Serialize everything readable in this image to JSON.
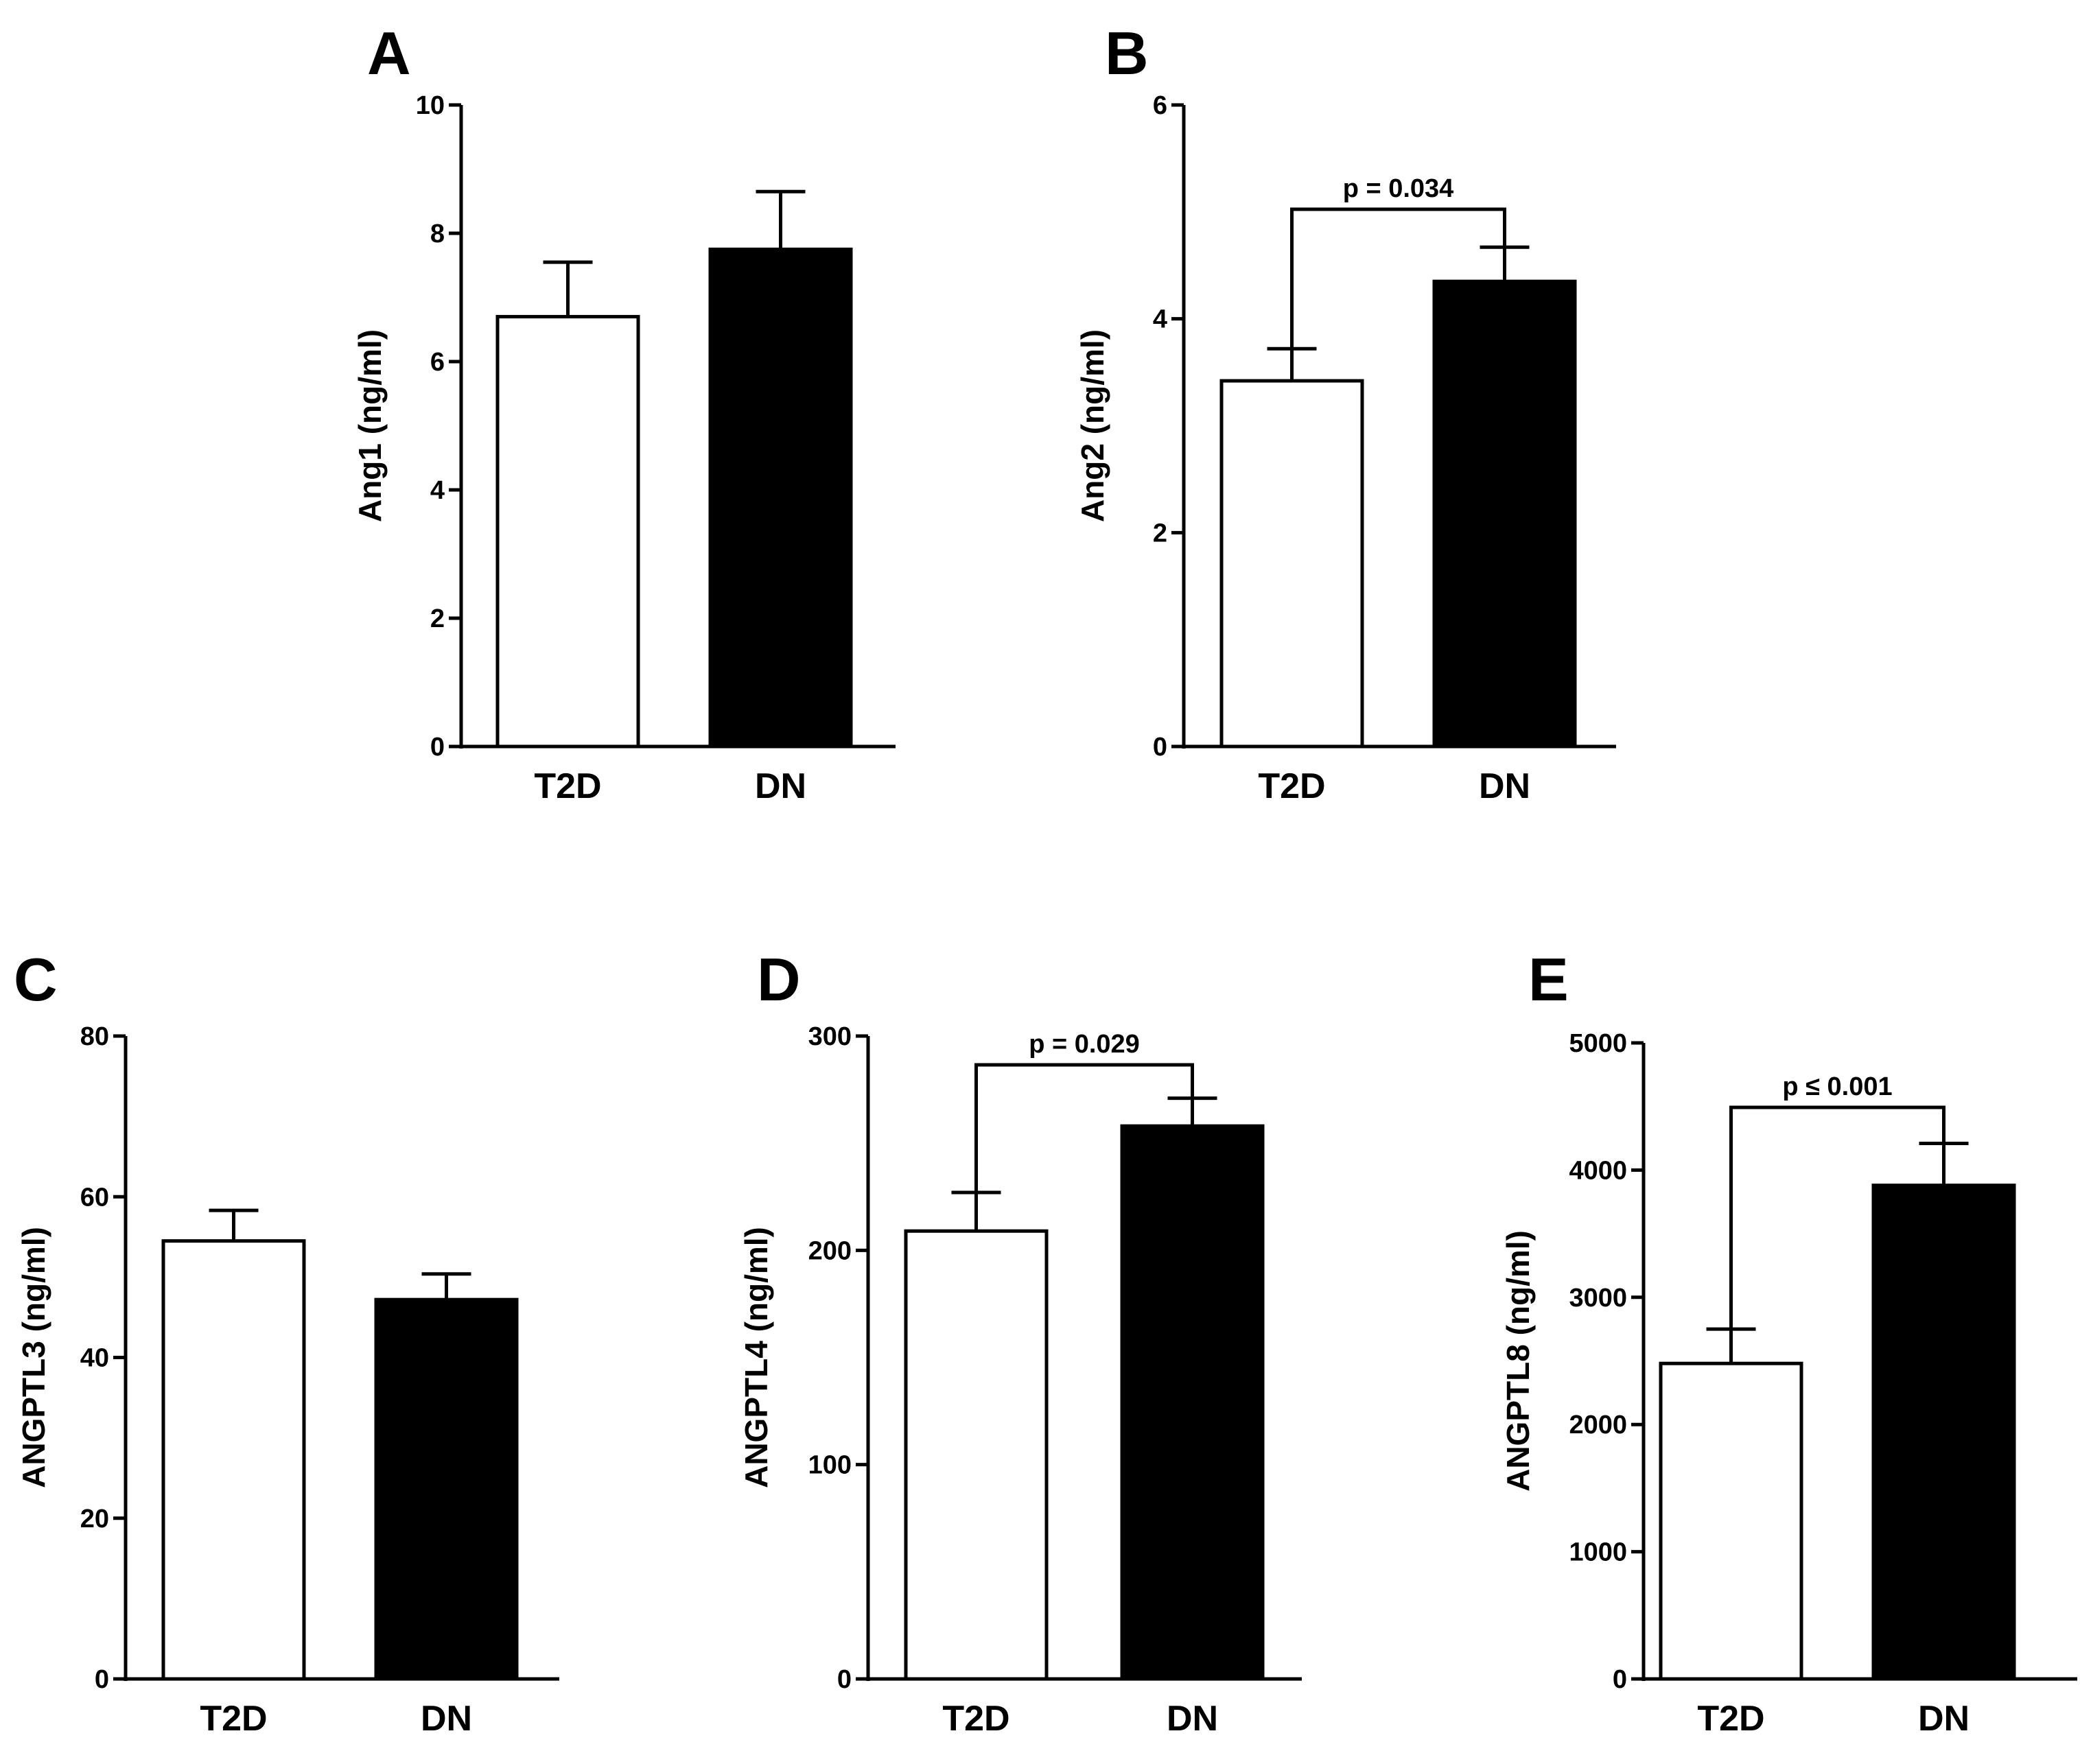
{
  "chart_data": [
    {
      "panel": "A",
      "type": "bar",
      "categories": [
        "T2D",
        "DN"
      ],
      "values": [
        6.7,
        7.75
      ],
      "errors": [
        0.85,
        0.9
      ],
      "fill_colors": [
        "#ffffff",
        "#000000"
      ],
      "ylabel": "Ang1 (ng/ml)",
      "ylim": [
        0,
        10
      ],
      "yticks": [
        "0",
        "2",
        "4",
        "6",
        "8",
        "10"
      ],
      "significance": null
    },
    {
      "panel": "B",
      "type": "bar",
      "categories": [
        "T2D",
        "DN"
      ],
      "values": [
        3.42,
        4.35
      ],
      "errors": [
        0.3,
        0.32
      ],
      "fill_colors": [
        "#ffffff",
        "#000000"
      ],
      "ylabel": "Ang2 (ng/ml)",
      "ylim": [
        0,
        6
      ],
      "yticks": [
        "0",
        "2",
        "4",
        "6"
      ],
      "significance": "p = 0.034"
    },
    {
      "panel": "C",
      "type": "bar",
      "categories": [
        "T2D",
        "DN"
      ],
      "values": [
        54.5,
        47.2
      ],
      "errors": [
        3.8,
        3.2
      ],
      "fill_colors": [
        "#ffffff",
        "#000000"
      ],
      "ylabel": "ANGPTL3 (ng/ml)",
      "ylim": [
        0,
        80
      ],
      "yticks": [
        "0",
        "20",
        "40",
        "60",
        "80"
      ],
      "significance": null
    },
    {
      "panel": "D",
      "type": "bar",
      "categories": [
        "T2D",
        "DN"
      ],
      "values": [
        209,
        258
      ],
      "errors": [
        18,
        13
      ],
      "fill_colors": [
        "#ffffff",
        "#000000"
      ],
      "ylabel": "ANGPTL4 (ng/ml)",
      "ylim": [
        0,
        300
      ],
      "yticks": [
        "0",
        "100",
        "200",
        "300"
      ],
      "significance": "p = 0.029"
    },
    {
      "panel": "E",
      "type": "bar",
      "categories": [
        "T2D",
        "DN"
      ],
      "values": [
        2480,
        3880
      ],
      "errors": [
        270,
        330
      ],
      "fill_colors": [
        "#ffffff",
        "#000000"
      ],
      "ylabel": "ANGPTL8 (ng/ml)",
      "ylim": [
        0,
        5000
      ],
      "yticks": [
        "0",
        "1000",
        "2000",
        "3000",
        "4000",
        "5000"
      ],
      "significance": "p ≤ 0.001"
    }
  ]
}
